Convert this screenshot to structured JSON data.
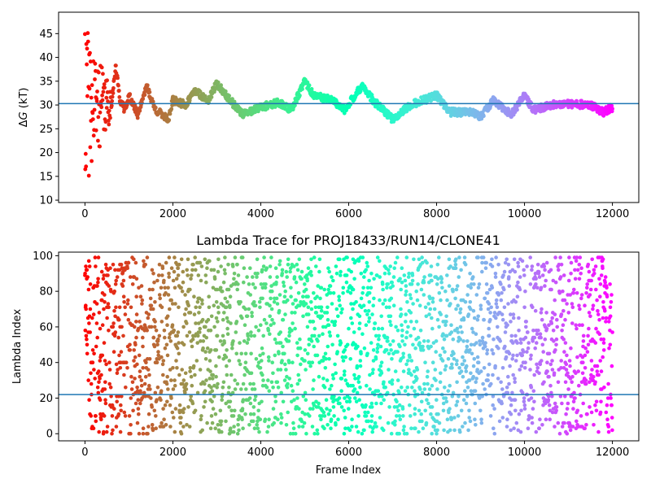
{
  "chart_data": [
    {
      "type": "scatter",
      "title": "",
      "xlabel": "",
      "ylabel": "ΔG (kT)",
      "xlim": [
        -600,
        12600
      ],
      "ylim": [
        9.5,
        49.5
      ],
      "x_ticks": [
        "0",
        "2000",
        "4000",
        "6000",
        "8000",
        "10000",
        "12000"
      ],
      "y_ticks": [
        "10",
        "15",
        "20",
        "25",
        "30",
        "35",
        "40",
        "45"
      ],
      "colormap": "rainbow (red at frame 0 → violet at frame 12000)",
      "reference_line": {
        "orientation": "horizontal",
        "y": 30.3,
        "color": "#1f77b4"
      },
      "trace_keypoints": [
        {
          "x": 0,
          "y": 10
        },
        {
          "x": 0,
          "y": 45
        },
        {
          "x": 20,
          "y": 16
        },
        {
          "x": 40,
          "y": 40
        },
        {
          "x": 60,
          "y": 22
        },
        {
          "x": 100,
          "y": 38
        },
        {
          "x": 150,
          "y": 15
        },
        {
          "x": 200,
          "y": 33
        },
        {
          "x": 250,
          "y": 18
        },
        {
          "x": 300,
          "y": 36
        },
        {
          "x": 350,
          "y": 24
        },
        {
          "x": 400,
          "y": 31
        },
        {
          "x": 450,
          "y": 26
        },
        {
          "x": 500,
          "y": 34
        },
        {
          "x": 600,
          "y": 30
        },
        {
          "x": 700,
          "y": 38
        },
        {
          "x": 800,
          "y": 31
        },
        {
          "x": 900,
          "y": 29
        },
        {
          "x": 1000,
          "y": 32
        },
        {
          "x": 1200,
          "y": 28
        },
        {
          "x": 1400,
          "y": 34
        },
        {
          "x": 1600,
          "y": 29
        },
        {
          "x": 1900,
          "y": 27
        },
        {
          "x": 2000,
          "y": 31
        },
        {
          "x": 2300,
          "y": 30
        },
        {
          "x": 2500,
          "y": 33
        },
        {
          "x": 2800,
          "y": 31
        },
        {
          "x": 3000,
          "y": 34.5
        },
        {
          "x": 3300,
          "y": 31
        },
        {
          "x": 3600,
          "y": 28
        },
        {
          "x": 4000,
          "y": 29.5
        },
        {
          "x": 4400,
          "y": 30.5
        },
        {
          "x": 4700,
          "y": 29
        },
        {
          "x": 5000,
          "y": 35
        },
        {
          "x": 5200,
          "y": 32
        },
        {
          "x": 5600,
          "y": 31
        },
        {
          "x": 5900,
          "y": 29
        },
        {
          "x": 6300,
          "y": 34
        },
        {
          "x": 6600,
          "y": 30.5
        },
        {
          "x": 7000,
          "y": 27
        },
        {
          "x": 7400,
          "y": 30
        },
        {
          "x": 7700,
          "y": 31
        },
        {
          "x": 8000,
          "y": 32
        },
        {
          "x": 8300,
          "y": 28.5
        },
        {
          "x": 8800,
          "y": 28.5
        },
        {
          "x": 9000,
          "y": 27.5
        },
        {
          "x": 9300,
          "y": 31
        },
        {
          "x": 9700,
          "y": 28
        },
        {
          "x": 10000,
          "y": 32
        },
        {
          "x": 10200,
          "y": 29
        },
        {
          "x": 10600,
          "y": 30
        },
        {
          "x": 11000,
          "y": 30.2
        },
        {
          "x": 11500,
          "y": 30
        },
        {
          "x": 11800,
          "y": 28.5
        },
        {
          "x": 12000,
          "y": 29.5
        }
      ]
    },
    {
      "type": "scatter",
      "title": "Lambda Trace for PROJ18433/RUN14/CLONE41",
      "xlabel": "Frame Index",
      "ylabel": "Lambda Index",
      "xlim": [
        -600,
        12600
      ],
      "ylim": [
        -4,
        102
      ],
      "x_ticks": [
        "0",
        "2000",
        "4000",
        "6000",
        "8000",
        "10000",
        "12000"
      ],
      "y_ticks": [
        "0",
        "20",
        "40",
        "60",
        "80",
        "100"
      ],
      "colormap": "rainbow (red at frame 0 → violet at frame 12000)",
      "reference_line": {
        "orientation": "horizontal",
        "y": 22,
        "color": "#1f77b4"
      },
      "points_description": "approximately uniform scatter of lambda index 0–99 over frames 0–12000"
    }
  ]
}
